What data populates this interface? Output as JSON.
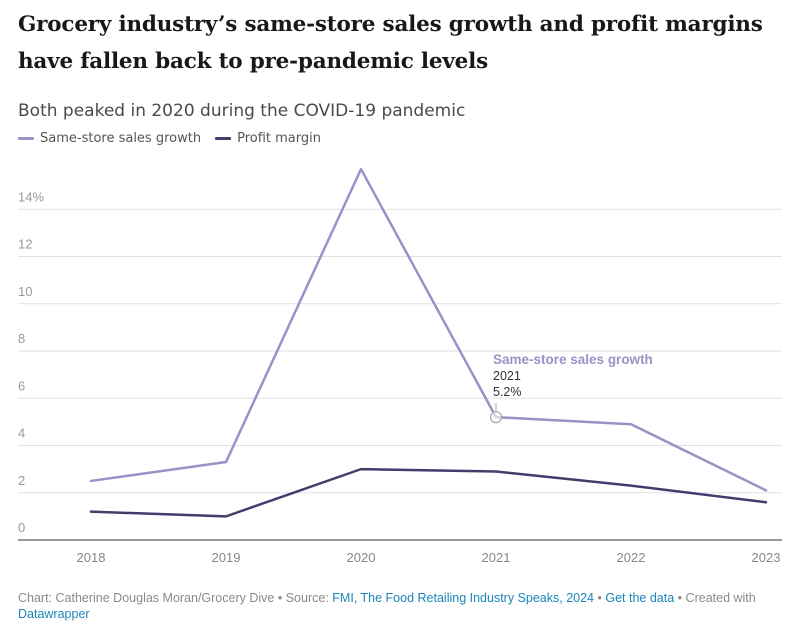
{
  "title": "Grocery industry’s same-store sales growth and profit margins have fallen back to pre-pandemic levels",
  "subtitle": "Both peaked in 2020 during the COVID-19 pandemic",
  "colors": {
    "same_store": "#9b91c6",
    "profit": "#423d6b",
    "grid": "#e2e2e2",
    "axis_text": "#999999",
    "link": "#1a87b8"
  },
  "chart_data": {
    "type": "line",
    "x": [
      "2018",
      "2019",
      "2020",
      "2021",
      "2022",
      "2023"
    ],
    "series": [
      {
        "name": "Same-store sales growth",
        "values": [
          2.5,
          3.3,
          15.7,
          5.2,
          4.9,
          2.1
        ]
      },
      {
        "name": "Profit margin",
        "values": [
          1.2,
          1.0,
          3.0,
          2.9,
          2.3,
          1.6
        ]
      }
    ],
    "yticks": [
      0,
      2,
      4,
      6,
      8,
      10,
      12,
      14
    ],
    "ytick_labels": [
      "0",
      "2",
      "4",
      "6",
      "8",
      "10",
      "12",
      "14%"
    ],
    "ylim": [
      0,
      16
    ],
    "grid": true,
    "legend": "top-left",
    "annotation": {
      "series": "Same-store sales growth",
      "x": "2021",
      "value": 5.2,
      "label_title": "Same-store sales growth",
      "label_year": "2021",
      "label_value": "5.2%"
    }
  },
  "footer": {
    "chart_credit": "Chart: Catherine Douglas Moran/Grocery Dive",
    "separator": "•",
    "source_prefix": "Source:",
    "source_link": "FMI, The Food Retailing Industry Speaks, 2024",
    "get_data": "Get the data",
    "created_with": "Created with",
    "tool": "Datawrapper"
  }
}
